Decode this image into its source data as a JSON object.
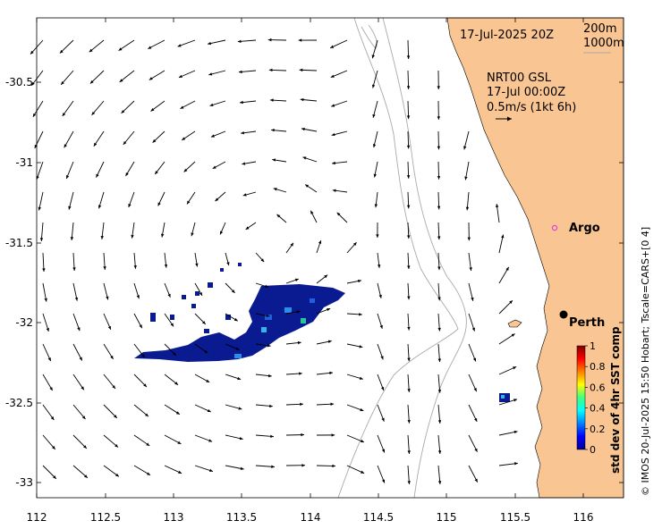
{
  "map": {
    "date_title": "17-Jul-2025 20Z",
    "isobath_labels": [
      "200m",
      "1000m"
    ],
    "current_source": "NRT00 GSL",
    "current_time": "17-Jul 00:00Z",
    "scale_label": "0.5m/s (1kt 6h)",
    "side_credit": "© IMOS 20-Jul-2025 15:50 Hobart; Tscale=CARS+[0 4]",
    "lon_ticks": [
      "112",
      "112.5",
      "113",
      "113.5",
      "114",
      "114.5",
      "115",
      "115.5",
      "116"
    ],
    "lat_ticks": [
      "-30.5",
      "-31",
      "-31.5",
      "-32",
      "-32.5",
      "-33"
    ],
    "places": [
      {
        "name": "Argo",
        "lon": 115.8,
        "lat": -31.4,
        "marker": "ring"
      },
      {
        "name": "Perth",
        "lon": 115.85,
        "lat": -31.95,
        "marker": "dot"
      }
    ],
    "colors": {
      "land": "#f9c592",
      "isobath": "#a9a9a9",
      "argo": "#e040e0"
    }
  },
  "colorbar": {
    "label": "std dev of 4hr SST comp",
    "ticks": [
      "0",
      "0.2",
      "0.4",
      "0.6",
      "0.8",
      "1"
    ],
    "colormap": "jet"
  }
}
